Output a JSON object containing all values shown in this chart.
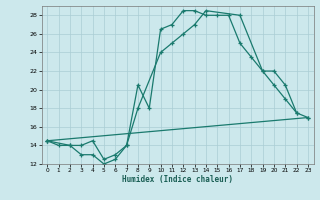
{
  "title": "",
  "xlabel": "Humidex (Indice chaleur)",
  "bg_color": "#cce8ec",
  "grid_color": "#aacdd4",
  "line_color": "#1a7a6e",
  "xlim": [
    -0.5,
    23.5
  ],
  "ylim": [
    12,
    29
  ],
  "xticks": [
    0,
    1,
    2,
    3,
    4,
    5,
    6,
    7,
    8,
    9,
    10,
    11,
    12,
    13,
    14,
    15,
    16,
    17,
    18,
    19,
    20,
    21,
    22,
    23
  ],
  "yticks": [
    12,
    14,
    16,
    18,
    20,
    22,
    24,
    26,
    28
  ],
  "line1_x": [
    0,
    1,
    2,
    3,
    4,
    5,
    6,
    7,
    8,
    9,
    10,
    11,
    12,
    13,
    14,
    15,
    16,
    17,
    18,
    19,
    20,
    21,
    22
  ],
  "line1_y": [
    14.5,
    14.0,
    14.0,
    13.0,
    13.0,
    12.0,
    12.5,
    14.0,
    20.5,
    18.0,
    26.5,
    27.0,
    28.5,
    28.5,
    28.0,
    28.0,
    28.0,
    25.0,
    23.5,
    22.0,
    20.5,
    19.0,
    17.5
  ],
  "line2_x": [
    0,
    2,
    3,
    4,
    5,
    6,
    7,
    8,
    10,
    11,
    12,
    13,
    14,
    17,
    19,
    20,
    21,
    22,
    23
  ],
  "line2_y": [
    14.5,
    14.0,
    14.0,
    14.5,
    12.5,
    13.0,
    14.0,
    18.0,
    24.0,
    25.0,
    26.0,
    27.0,
    28.5,
    28.0,
    22.0,
    22.0,
    20.5,
    17.5,
    17.0
  ],
  "line3_x": [
    0,
    23
  ],
  "line3_y": [
    14.5,
    17.0
  ]
}
